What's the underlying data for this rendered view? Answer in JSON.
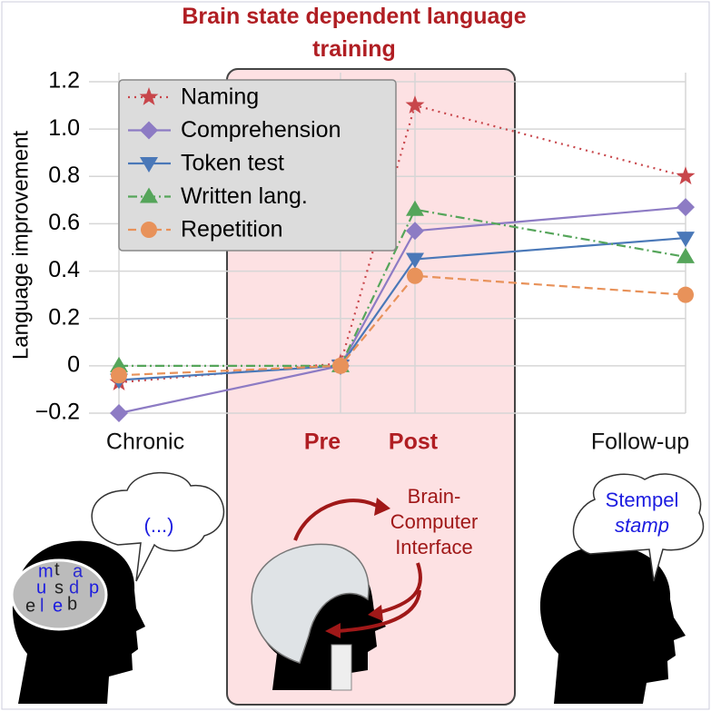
{
  "chart_data": {
    "type": "line",
    "title": "Brain state dependent language training",
    "ylabel": "Language improvement",
    "categories": [
      "Chronic",
      "Pre",
      "Post",
      "Follow-up"
    ],
    "ylim": [
      -0.2,
      1.2
    ],
    "yticks": [
      {
        "value": -0.2,
        "label": "−0.2"
      },
      0,
      0.2,
      0.4,
      0.6,
      0.8,
      {
        "value": 1.0,
        "label": "1.0"
      },
      1.2
    ],
    "grid": true,
    "legend": "upper left",
    "series": [
      {
        "name": "Naming",
        "color": "#c8464b",
        "marker": "star",
        "dash": "dotted",
        "values": [
          -0.07,
          0.01,
          1.1,
          0.8
        ]
      },
      {
        "name": "Comprehension",
        "color": "#8d7bc4",
        "marker": "diamond",
        "dash": "solid",
        "values": [
          -0.2,
          0,
          0.57,
          0.67
        ]
      },
      {
        "name": "Token test",
        "color": "#4a78b8",
        "marker": "triangle-down",
        "dash": "solid",
        "values": [
          -0.06,
          0,
          0.45,
          0.54
        ]
      },
      {
        "name": "Written lang.",
        "color": "#55a55a",
        "marker": "triangle-up",
        "dash": "dashdot",
        "values": [
          0,
          0,
          0.66,
          0.46
        ]
      },
      {
        "name": "Repetition",
        "color": "#e8925a",
        "marker": "circle",
        "dash": "dashed",
        "values": [
          -0.04,
          0,
          0.38,
          0.3
        ]
      }
    ],
    "annotations": [
      "(...)",
      "Brain-",
      "Computer",
      "Interface",
      "Stempel",
      "stamp"
    ],
    "brain_letters": [
      "m",
      "t",
      "a",
      "u",
      "s",
      "d",
      "p",
      "e",
      "l",
      "e",
      "b"
    ]
  }
}
